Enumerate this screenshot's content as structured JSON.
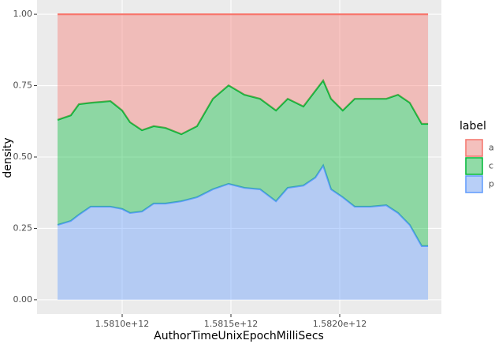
{
  "chart_data": {
    "type": "stacked_area",
    "position": "fill",
    "x_label": "AuthorTimeUnixEpochMilliSecs",
    "y_label": "density",
    "legend_title": "label",
    "legend_position": "right",
    "grid": true,
    "x": [
      1580703000000,
      1580764000000,
      1580801000000,
      1580855000000,
      1580946000000,
      1581000000000,
      1581036000000,
      1581091000000,
      1581145000000,
      1581199000000,
      1581272000000,
      1581344000000,
      1581417000000,
      1581489000000,
      1581562000000,
      1581634000000,
      1581707000000,
      1581761000000,
      1581833000000,
      1581888000000,
      1581924000000,
      1581960000000,
      1582014000000,
      1582069000000,
      1582141000000,
      1582214000000,
      1582268000000,
      1582322000000,
      1582377000000,
      1582406000000
    ],
    "series": [
      {
        "name": "a",
        "color": "#F8766D",
        "values": [
          0.37,
          0.354,
          0.315,
          0.31,
          0.304,
          0.337,
          0.378,
          0.406,
          0.392,
          0.398,
          0.42,
          0.392,
          0.296,
          0.249,
          0.282,
          0.296,
          0.337,
          0.296,
          0.323,
          0.268,
          0.232,
          0.296,
          0.337,
          0.296,
          0.296,
          0.296,
          0.282,
          0.31,
          0.384,
          0.384
        ]
      },
      {
        "name": "c",
        "color": "#00BA38",
        "values": [
          0.368,
          0.37,
          0.387,
          0.364,
          0.37,
          0.345,
          0.318,
          0.285,
          0.271,
          0.265,
          0.235,
          0.249,
          0.317,
          0.345,
          0.326,
          0.317,
          0.318,
          0.312,
          0.277,
          0.304,
          0.298,
          0.317,
          0.304,
          0.378,
          0.378,
          0.373,
          0.414,
          0.428,
          0.428,
          0.428
        ]
      },
      {
        "name": "p",
        "color": "#619CFF",
        "values": [
          0.262,
          0.276,
          0.298,
          0.326,
          0.326,
          0.318,
          0.304,
          0.309,
          0.337,
          0.337,
          0.345,
          0.359,
          0.387,
          0.406,
          0.392,
          0.387,
          0.345,
          0.392,
          0.4,
          0.428,
          0.47,
          0.387,
          0.359,
          0.326,
          0.326,
          0.331,
          0.304,
          0.262,
          0.188,
          0.188
        ]
      }
    ],
    "xlim": [
      1580608700000,
      1582467400000
    ],
    "xticks": [
      {
        "value": 1581000000000,
        "label": "1.5810e+12"
      },
      {
        "value": 1581500000000,
        "label": "1.5815e+12"
      },
      {
        "value": 1582000000000,
        "label": "1.5820e+12"
      }
    ],
    "ylim": [
      -0.05,
      1.05
    ],
    "yticks": [
      {
        "value": 0,
        "label": "0.00"
      },
      {
        "value": 0.25,
        "label": "0.25"
      },
      {
        "value": 0.5,
        "label": "0.50"
      },
      {
        "value": 0.75,
        "label": "0.75"
      },
      {
        "value": 1,
        "label": "1.00"
      }
    ]
  }
}
